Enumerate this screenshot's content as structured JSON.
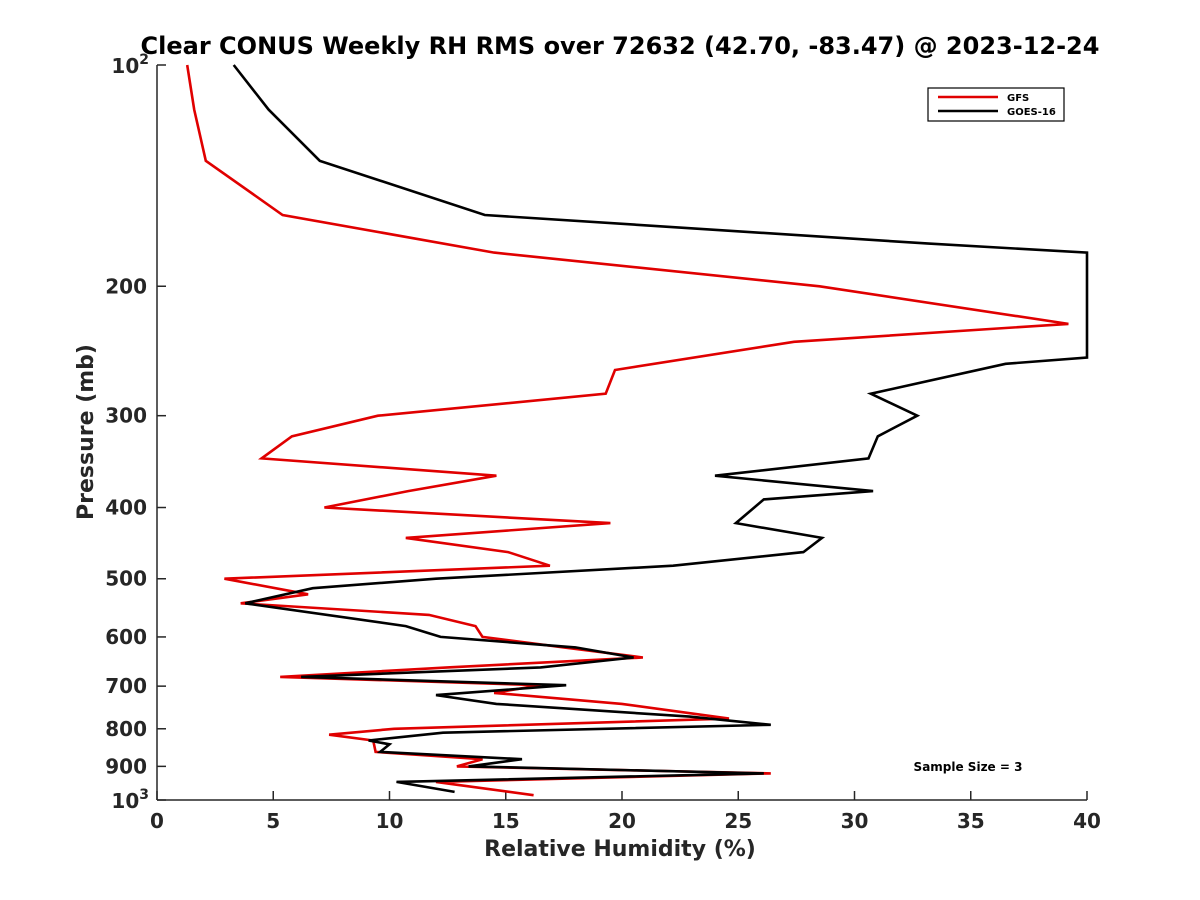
{
  "chart_data": {
    "type": "line",
    "title": "Clear CONUS Weekly RH RMS over 72632 (42.70, -83.47) @ 2023-12-24",
    "xlabel": "Relative Humidity (%)",
    "ylabel": "Pressure (mb)",
    "xlim": [
      0,
      40
    ],
    "ylim": [
      100,
      1000
    ],
    "y_scale": "log",
    "y_reversed": true,
    "grid": false,
    "legend_position": "top-right",
    "x_ticks": [
      "0",
      "5",
      "10",
      "15",
      "20",
      "25",
      "30",
      "35",
      "40"
    ],
    "y_ticks": [
      {
        "value": 200,
        "label": "200"
      },
      {
        "value": 300,
        "label": "300"
      },
      {
        "value": 400,
        "label": "400"
      },
      {
        "value": 500,
        "label": "500"
      },
      {
        "value": 600,
        "label": "600"
      },
      {
        "value": 700,
        "label": "700"
      },
      {
        "value": 800,
        "label": "800"
      },
      {
        "value": 900,
        "label": "900"
      }
    ],
    "y_end_ticks": {
      "top": {
        "value": 100,
        "base": "10",
        "exp": "2"
      },
      "bottom": {
        "value": 1000,
        "base": "10",
        "exp": "3"
      }
    },
    "annotation": "Sample Size = 3",
    "series": [
      {
        "name": "GFS",
        "color": "#e00000",
        "points": [
          [
            1.3,
            100
          ],
          [
            1.6,
            115
          ],
          [
            2.1,
            135
          ],
          [
            5.4,
            160
          ],
          [
            14.5,
            180
          ],
          [
            28.5,
            200
          ],
          [
            39.2,
            225
          ],
          [
            27.4,
            238
          ],
          [
            19.7,
            260
          ],
          [
            19.3,
            280
          ],
          [
            9.5,
            300
          ],
          [
            5.8,
            320
          ],
          [
            4.5,
            343
          ],
          [
            14.6,
            362
          ],
          [
            10.8,
            380
          ],
          [
            7.2,
            400
          ],
          [
            19.5,
            420
          ],
          [
            10.7,
            440
          ],
          [
            15.1,
            460
          ],
          [
            16.9,
            480
          ],
          [
            2.9,
            500
          ],
          [
            6.5,
            525
          ],
          [
            3.6,
            540
          ],
          [
            11.7,
            560
          ],
          [
            13.7,
            580
          ],
          [
            14.0,
            600
          ],
          [
            17.5,
            620
          ],
          [
            20.9,
            640
          ],
          [
            12.5,
            660
          ],
          [
            5.3,
            680
          ],
          [
            16.5,
            698
          ],
          [
            14.5,
            715
          ],
          [
            20.0,
            740
          ],
          [
            24.6,
            775
          ],
          [
            10.2,
            800
          ],
          [
            7.4,
            815
          ],
          [
            9.3,
            830
          ],
          [
            9.4,
            860
          ],
          [
            14.0,
            880
          ],
          [
            12.9,
            900
          ],
          [
            26.4,
            920
          ],
          [
            12.0,
            945
          ],
          [
            16.2,
            985
          ]
        ]
      },
      {
        "name": "GOES-16",
        "color": "#000000",
        "points": [
          [
            3.3,
            100
          ],
          [
            4.8,
            115
          ],
          [
            7.0,
            135
          ],
          [
            14.1,
            160
          ],
          [
            33.2,
            175
          ],
          [
            40.0,
            180
          ],
          [
            40.0,
            250
          ],
          [
            36.5,
            255
          ],
          [
            30.7,
            280
          ],
          [
            32.7,
            300
          ],
          [
            31.0,
            320
          ],
          [
            30.6,
            343
          ],
          [
            24.0,
            362
          ],
          [
            30.8,
            380
          ],
          [
            26.1,
            390
          ],
          [
            24.9,
            420
          ],
          [
            28.6,
            440
          ],
          [
            27.8,
            460
          ],
          [
            22.2,
            480
          ],
          [
            12.0,
            500
          ],
          [
            6.7,
            515
          ],
          [
            3.8,
            540
          ],
          [
            10.7,
            580
          ],
          [
            12.2,
            600
          ],
          [
            18.0,
            620
          ],
          [
            20.5,
            640
          ],
          [
            16.5,
            660
          ],
          [
            6.2,
            680
          ],
          [
            17.6,
            698
          ],
          [
            12.0,
            720
          ],
          [
            14.6,
            740
          ],
          [
            22.9,
            770
          ],
          [
            26.4,
            790
          ],
          [
            12.3,
            810
          ],
          [
            9.1,
            830
          ],
          [
            10.0,
            840
          ],
          [
            9.6,
            860
          ],
          [
            15.7,
            880
          ],
          [
            13.4,
            900
          ],
          [
            26.1,
            920
          ],
          [
            10.3,
            945
          ],
          [
            12.8,
            975
          ]
        ]
      }
    ]
  }
}
